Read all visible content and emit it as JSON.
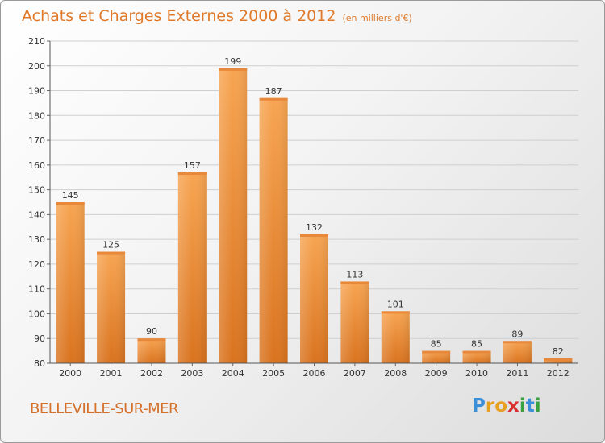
{
  "header": {
    "title": "Achats et Charges Externes 2000 à 2012",
    "subtitle": "(en milliers d'€)"
  },
  "location": "BELLEVILLE-SUR-MER",
  "brand": {
    "text": "Proxiti",
    "letters": [
      {
        "ch": "P",
        "color": "#3a8fd8"
      },
      {
        "ch": "r",
        "color": "#e8a020"
      },
      {
        "ch": "o",
        "color": "#e8a020"
      },
      {
        "ch": "x",
        "color": "#d83030"
      },
      {
        "ch": "i",
        "color": "#3aa040"
      },
      {
        "ch": "t",
        "color": "#3a8fd8"
      },
      {
        "ch": "i",
        "color": "#3aa040"
      }
    ]
  },
  "colors": {
    "accent": "#e07a2a",
    "bar_light": "#f7a552",
    "bar_dark": "#d9731f"
  },
  "chart_data": {
    "type": "bar",
    "categories": [
      "2000",
      "2001",
      "2002",
      "2003",
      "2004",
      "2005",
      "2006",
      "2007",
      "2008",
      "2009",
      "2010",
      "2011",
      "2012"
    ],
    "values": [
      145,
      125,
      90,
      157,
      199,
      187,
      132,
      113,
      101,
      85,
      85,
      89,
      82
    ],
    "ylim": [
      80,
      210
    ],
    "yticks": [
      80,
      90,
      100,
      110,
      120,
      130,
      140,
      150,
      160,
      170,
      180,
      190,
      200,
      210
    ],
    "grid": true,
    "data_labels": true
  }
}
